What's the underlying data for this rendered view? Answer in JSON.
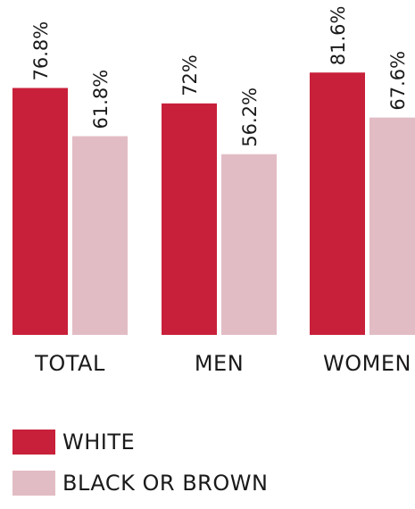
{
  "chart_data": {
    "type": "bar",
    "categories": [
      "TOTAL",
      "MEN",
      "WOMEN"
    ],
    "series": [
      {
        "name": "WHITE",
        "values": [
          76.8,
          72,
          81.6
        ],
        "labels": [
          "76.8%",
          "72%",
          "81.6%"
        ],
        "color": "#c8203a"
      },
      {
        "name": "BLACK OR BROWN",
        "values": [
          61.8,
          56.2,
          67.6
        ],
        "labels": [
          "61.8%",
          "56.2%",
          "67.6%"
        ],
        "color": "#e2bcc4"
      }
    ],
    "ylim": [
      0,
      100
    ],
    "legend": "bottom-left",
    "grid": false
  }
}
